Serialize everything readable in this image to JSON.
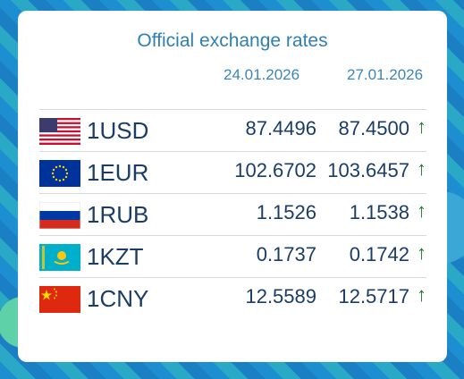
{
  "title": "Official exchange rates",
  "dates": [
    "24.01.2026",
    "27.01.2026"
  ],
  "rows": [
    {
      "currency": "1USD",
      "v1": "87.4496",
      "v2": "87.4500",
      "trend": "↑",
      "flag": "usa-flag-icon"
    },
    {
      "currency": "1EUR",
      "v1": "102.6702",
      "v2": "103.6457",
      "trend": "↑",
      "flag": "eu-flag-icon"
    },
    {
      "currency": "1RUB",
      "v1": "1.1526",
      "v2": "1.1538",
      "trend": "↑",
      "flag": "russia-flag-icon"
    },
    {
      "currency": "1KZT",
      "v1": "0.1737",
      "v2": "0.1742",
      "trend": "↑",
      "flag": "kazakhstan-flag-icon"
    },
    {
      "currency": "1CNY",
      "v1": "12.5589",
      "v2": "12.5717",
      "trend": "↑",
      "flag": "china-flag-icon"
    }
  ],
  "colors": {
    "text": "#1a3d68",
    "title": "#2f7fb3",
    "up": "#1f7a2e"
  }
}
